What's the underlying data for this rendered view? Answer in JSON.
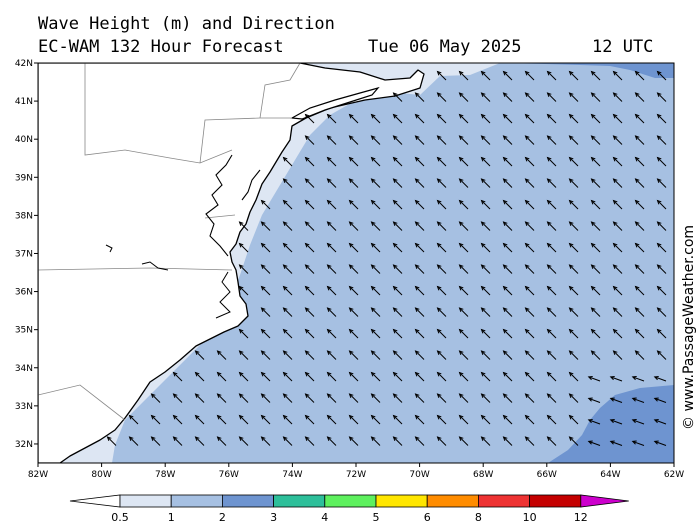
{
  "title": {
    "line1": "Wave Height (m) and Direction",
    "line2": "EC-WAM 132 Hour Forecast",
    "date": "Tue 06 May 2025",
    "time": "12 UTC"
  },
  "watermark": "© www.PassageWeather.com",
  "map": {
    "lat_labels": [
      "42N",
      "41N",
      "40N",
      "39N",
      "38N",
      "37N",
      "36N",
      "35N",
      "34N",
      "33N",
      "32N"
    ],
    "lon_labels": [
      "82W",
      "80W",
      "78W",
      "76W",
      "74W",
      "72W",
      "70W",
      "68W",
      "66W",
      "64W",
      "62W"
    ],
    "lat_range": [
      31.5,
      42
    ],
    "lon_range": [
      -82,
      -62
    ],
    "wave_direction": "NW",
    "colors": {
      "land": "#ffffff",
      "band_0_5_1": "#dde6f3",
      "band_1_2": "#a6c0e2",
      "band_2_3": "#6e94d0",
      "arrow": "#000000"
    }
  },
  "colorbar": {
    "labels": [
      "0.5",
      "1",
      "2",
      "3",
      "4",
      "5",
      "6",
      "8",
      "10",
      "12"
    ],
    "colors": [
      "#ffffff",
      "#dde6f3",
      "#a6c0e2",
      "#6e94d0",
      "#2dbf9a",
      "#5ef05e",
      "#ffe600",
      "#ff8c00",
      "#ee3333",
      "#c40000",
      "#cc00cc"
    ]
  }
}
